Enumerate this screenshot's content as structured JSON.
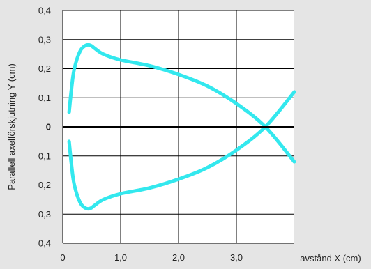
{
  "chart_data": {
    "type": "line",
    "title": "",
    "xlabel": "avstånd X (cm)",
    "ylabel": "Parallell axelförskjutning Y (cm)",
    "xlim": [
      0,
      4
    ],
    "ylim": [
      -0.4,
      0.4
    ],
    "grid": true,
    "x_ticks": [
      {
        "value": 0,
        "label": "0"
      },
      {
        "value": 1,
        "label": "1,0"
      },
      {
        "value": 2,
        "label": "2,0"
      },
      {
        "value": 3,
        "label": "3,0"
      }
    ],
    "y_ticks": [
      {
        "value": 0.4,
        "label": "0,4"
      },
      {
        "value": 0.3,
        "label": "0,3"
      },
      {
        "value": 0.2,
        "label": "0,2"
      },
      {
        "value": 0.1,
        "label": "0,1"
      },
      {
        "value": 0,
        "label": "0"
      },
      {
        "value": -0.1,
        "label": "0,1"
      },
      {
        "value": -0.2,
        "label": "0,2"
      },
      {
        "value": -0.3,
        "label": "0,3"
      },
      {
        "value": -0.4,
        "label": "0,4"
      }
    ],
    "series": [
      {
        "color": "#33e8ee",
        "x": [
          0.11,
          0.15,
          0.2,
          0.3,
          0.4,
          0.48,
          0.55,
          0.7,
          1.0,
          1.5,
          2.0,
          2.5,
          3.0,
          3.5,
          4.0
        ],
        "y": [
          0.05,
          0.13,
          0.2,
          0.26,
          0.28,
          0.28,
          0.27,
          0.25,
          0.23,
          0.21,
          0.18,
          0.14,
          0.08,
          0.0,
          -0.12
        ]
      },
      {
        "color": "#33e8ee",
        "x": [
          0.11,
          0.15,
          0.2,
          0.3,
          0.4,
          0.48,
          0.55,
          0.7,
          1.0,
          1.5,
          2.0,
          2.5,
          3.0,
          3.5,
          4.0
        ],
        "y": [
          -0.05,
          -0.13,
          -0.2,
          -0.26,
          -0.28,
          -0.28,
          -0.27,
          -0.25,
          -0.23,
          -0.21,
          -0.18,
          -0.14,
          -0.08,
          0.0,
          0.12
        ]
      }
    ]
  }
}
